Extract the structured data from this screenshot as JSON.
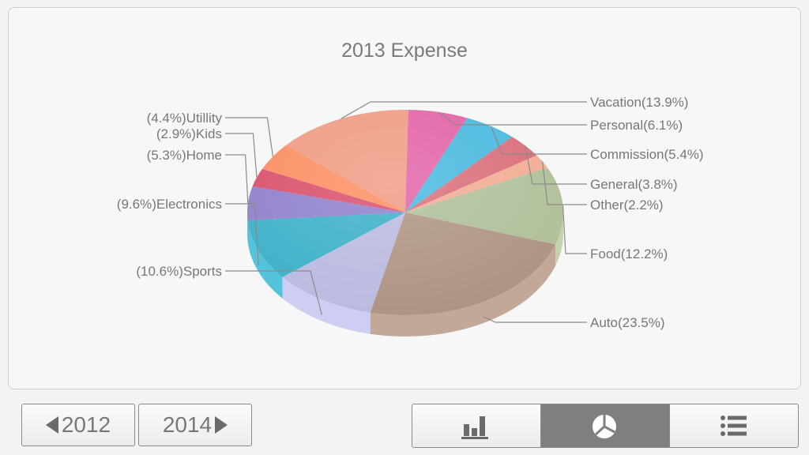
{
  "chart_data": {
    "type": "pie",
    "title": "2013 Expense",
    "slices": [
      {
        "name": "Vacation",
        "value": 13.9,
        "label": "Vacation(13.9%)",
        "color": "#ef9a82"
      },
      {
        "name": "Personal",
        "value": 6.1,
        "label": "Personal(6.1%)",
        "color": "#e262a6"
      },
      {
        "name": "Commission",
        "value": 5.4,
        "label": "Commission(5.4%)",
        "color": "#48b9df"
      },
      {
        "name": "General",
        "value": 3.8,
        "label": "General(3.8%)",
        "color": "#d96e7a"
      },
      {
        "name": "Other",
        "value": 2.2,
        "label": "Other(2.2%)",
        "color": "#f2ac92"
      },
      {
        "name": "Food",
        "value": 12.2,
        "label": "Food(12.2%)",
        "color": "#b0bf99"
      },
      {
        "name": "Auto",
        "value": 23.5,
        "label": "Auto(23.5%)",
        "color": "#ae9383"
      },
      {
        "name": "Sports",
        "value": 10.6,
        "label": "(10.6%)Sports",
        "color": "#babae0"
      },
      {
        "name": "Electronics",
        "value": 9.6,
        "label": "(9.6%)Electronics",
        "color": "#3cb0c8"
      },
      {
        "name": "Home",
        "value": 5.3,
        "label": "(5.3%)Home",
        "color": "#8f7fcc"
      },
      {
        "name": "Kids",
        "value": 2.9,
        "label": "(2.9%)Kids",
        "color": "#d94f6a"
      },
      {
        "name": "Utillity",
        "value": 4.4,
        "label": "(4.4%)Utillity",
        "color": "#fb8d60"
      }
    ]
  },
  "nav": {
    "prev_year": "2012",
    "next_year": "2014"
  },
  "view_switcher": {
    "items": [
      {
        "name": "bar-chart-view",
        "icon": "bar-chart-icon",
        "active": false
      },
      {
        "name": "pie-chart-view",
        "icon": "pie-chart-icon",
        "active": true
      },
      {
        "name": "list-view",
        "icon": "list-icon",
        "active": false
      }
    ],
    "active_color": "#7f7f7f"
  }
}
